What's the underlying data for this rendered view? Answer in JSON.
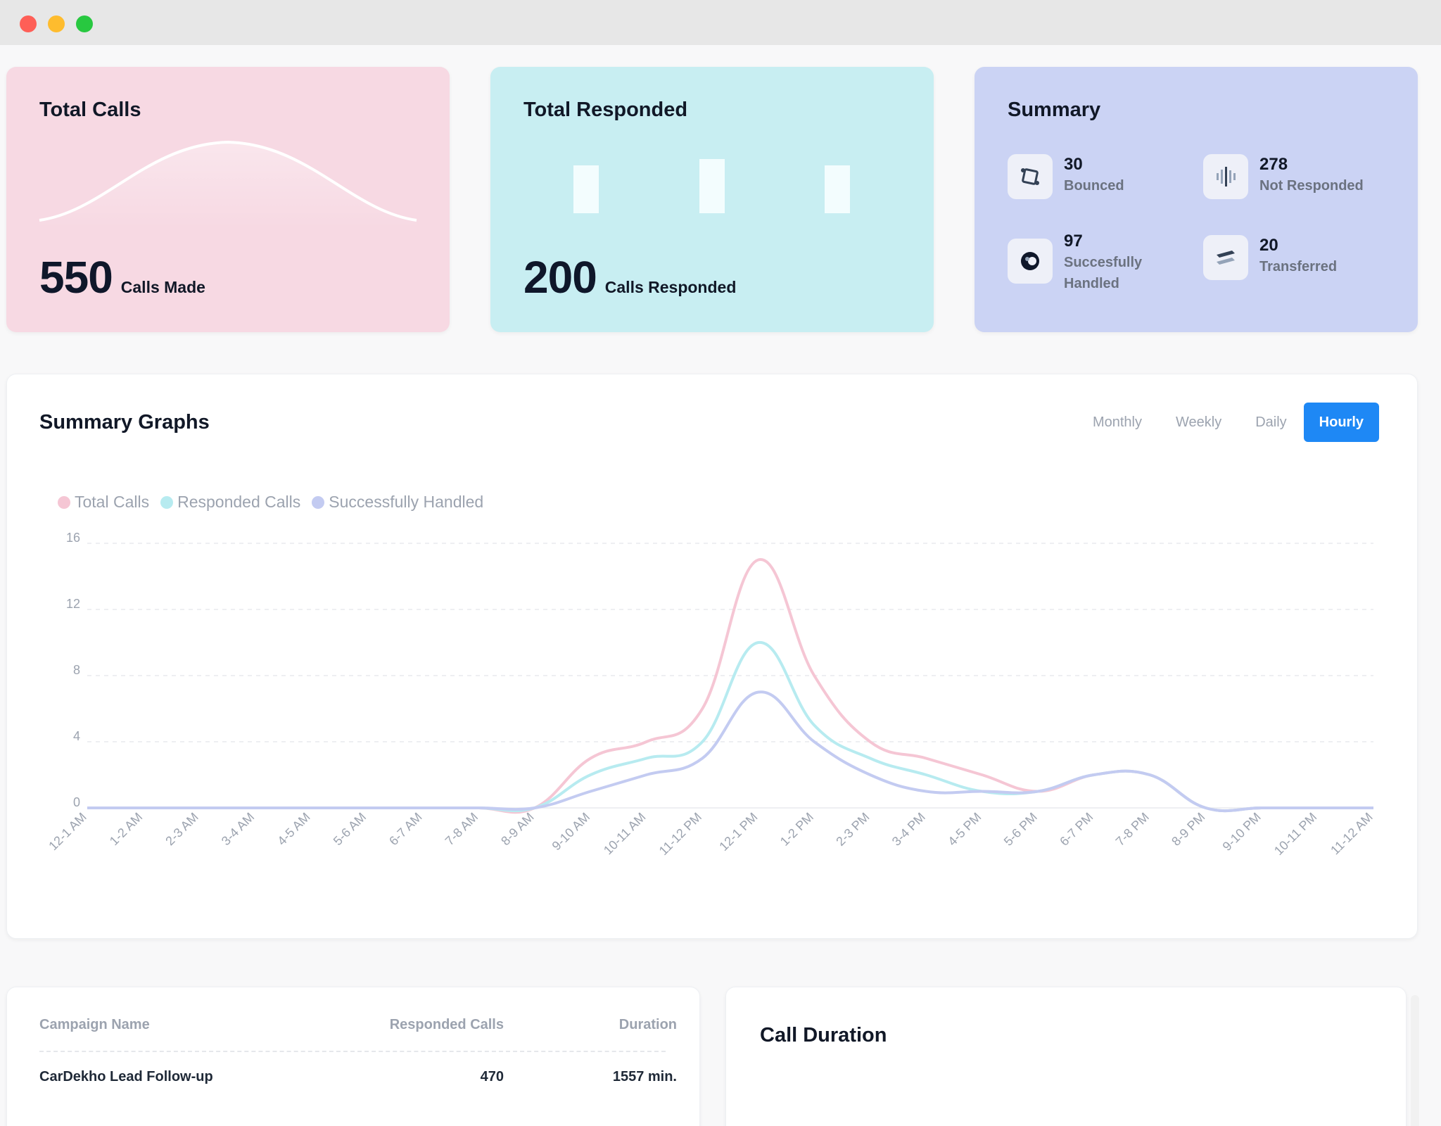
{
  "cards": {
    "total_calls": {
      "title": "Total Calls",
      "number": "550",
      "label": "Calls Made",
      "color": "#f7d9e3"
    },
    "total_responded": {
      "title": "Total Responded",
      "number": "200",
      "label": "Calls Responded",
      "color": "#c8eef2"
    },
    "summary": {
      "title": "Summary",
      "items": [
        {
          "value": "30",
          "label": "Bounced",
          "icon": "bounced-icon"
        },
        {
          "value": "278",
          "label": "Not Responded",
          "icon": "bars-icon"
        },
        {
          "value": "97",
          "label": "Succesfully",
          "label2": "Handled",
          "icon": "handled-icon"
        },
        {
          "value": "20",
          "label": "Transferred",
          "icon": "transfer-icon"
        }
      ]
    }
  },
  "graphs": {
    "title": "Summary Graphs",
    "tabs": [
      "Monthly",
      "Weekly",
      "Daily",
      "Hourly"
    ],
    "active_tab": "Hourly",
    "accent": "#1e88f5"
  },
  "chart_data": {
    "type": "line",
    "x": [
      "12-1 AM",
      "1-2 AM",
      "2-3 AM",
      "3-4 AM",
      "4-5 AM",
      "5-6 AM",
      "6-7 AM",
      "7-8 AM",
      "8-9 AM",
      "9-10 AM",
      "10-11 AM",
      "11-12 PM",
      "12-1 PM",
      "1-2 PM",
      "2-3 PM",
      "3-4 PM",
      "4-5 PM",
      "5-6 PM",
      "6-7 PM",
      "7-8 PM",
      "8-9 PM",
      "9-10 PM",
      "10-11 PM",
      "11-12 AM"
    ],
    "series": [
      {
        "name": "Total Calls",
        "color": "#f5c6d4",
        "values": [
          0,
          0,
          0,
          0,
          0,
          0,
          0,
          0,
          0,
          3,
          4,
          6,
          15,
          8,
          4,
          3,
          2,
          1,
          2,
          2,
          0,
          0,
          0,
          0
        ]
      },
      {
        "name": "Responded Calls",
        "color": "#b7ebf0",
        "values": [
          0,
          0,
          0,
          0,
          0,
          0,
          0,
          0,
          0,
          2,
          3,
          4,
          10,
          5,
          3,
          2,
          1,
          1,
          2,
          2,
          0,
          0,
          0,
          0
        ]
      },
      {
        "name": "Successfully Handled",
        "color": "#c3cbf1",
        "values": [
          0,
          0,
          0,
          0,
          0,
          0,
          0,
          0,
          0,
          1,
          2,
          3,
          7,
          4,
          2,
          1,
          1,
          1,
          2,
          2,
          0,
          0,
          0,
          0
        ]
      }
    ],
    "yticks": [
      0,
      4,
      8,
      12,
      16
    ],
    "ylim": [
      0,
      16
    ],
    "grid": true,
    "legend": "top-left"
  },
  "table": {
    "headers": [
      "Campaign Name",
      "Responded Calls",
      "Duration"
    ],
    "rows": [
      {
        "name": "CarDekho Lead Follow-up",
        "responded": "470",
        "duration": "1557 min."
      }
    ]
  },
  "call_duration": {
    "title": "Call Duration"
  }
}
